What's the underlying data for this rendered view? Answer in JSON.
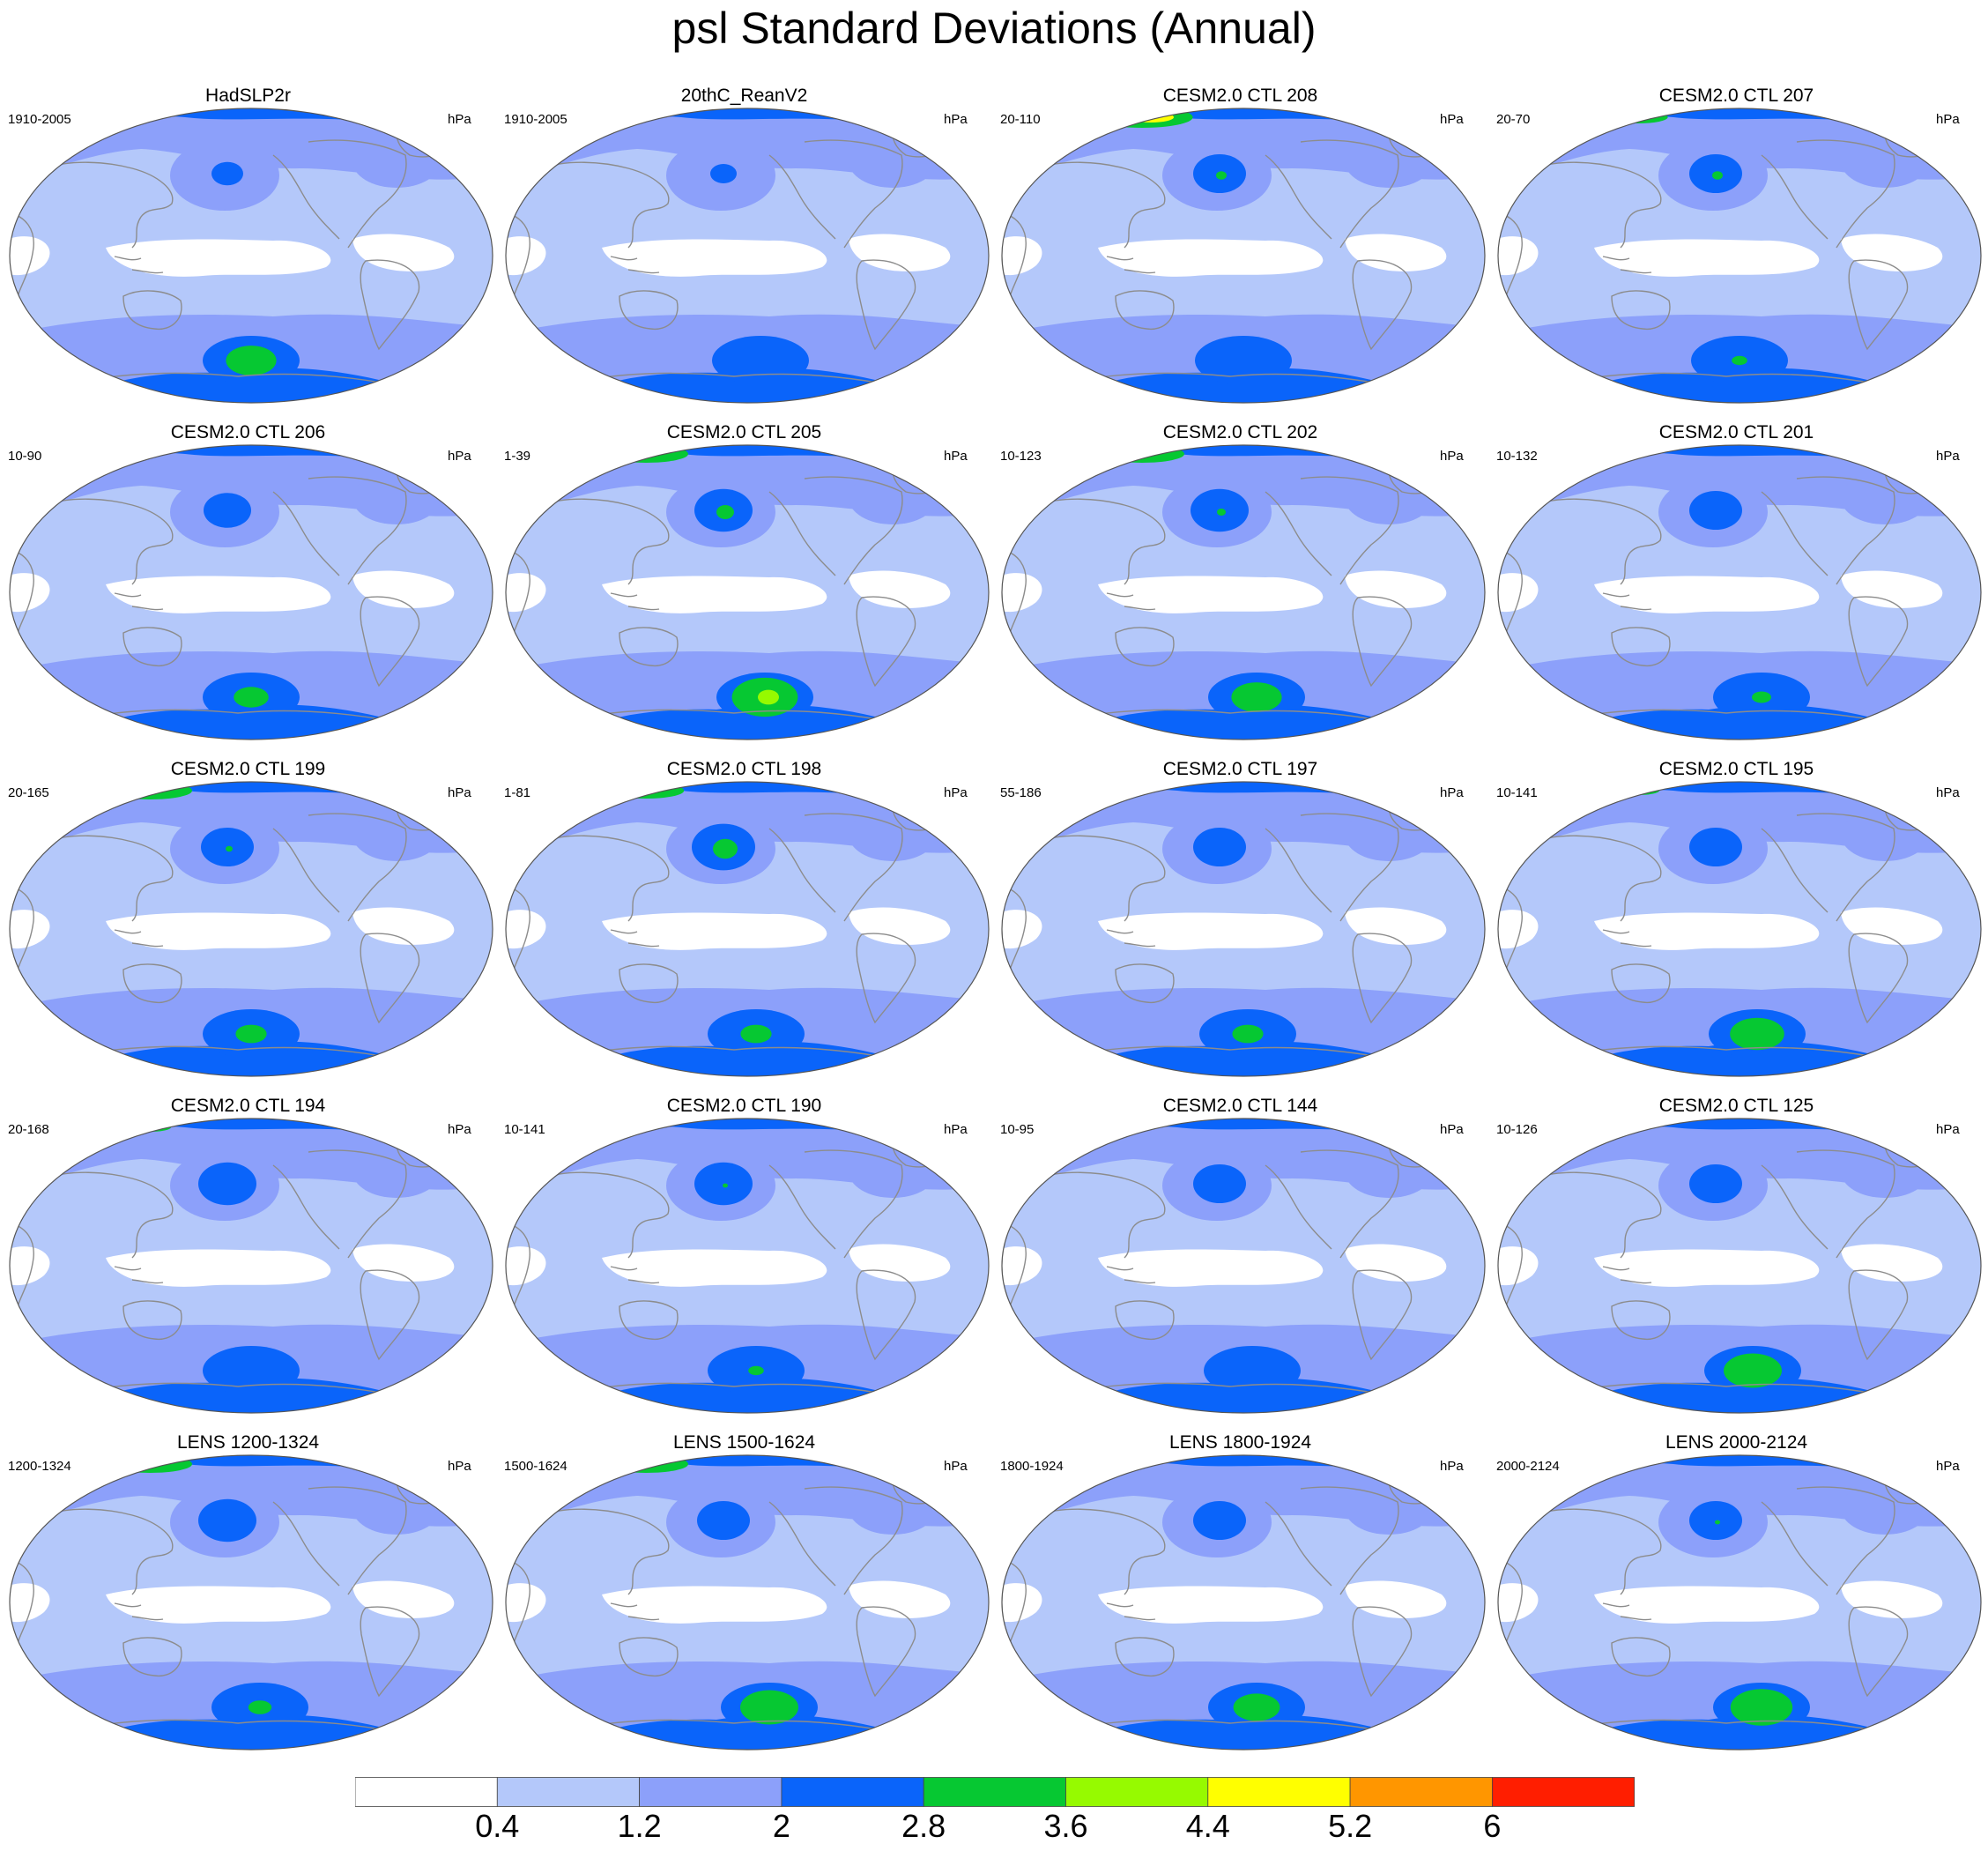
{
  "title": "psl Standard Deviations (Annual)",
  "units": "hPa",
  "colorbar": {
    "labels": [
      "0.4",
      "1.2",
      "2",
      "2.8",
      "3.6",
      "4.4",
      "5.2",
      "6"
    ],
    "colors": [
      "#ffffff",
      "#b4c8fa",
      "#8ca0fa",
      "#0a64fa",
      "#06c832",
      "#96fa00",
      "#ffff00",
      "#ff9600",
      "#ff1e00"
    ]
  },
  "palette": {
    "land_outline": "#8c8c8c",
    "frame": "#555555"
  },
  "panels": [
    {
      "title": "HadSLP2r",
      "years": "1910-2005"
    },
    {
      "title": "20thC_ReanV2",
      "years": "1910-2005"
    },
    {
      "title": "CESM2.0 CTL 208",
      "years": "20-110"
    },
    {
      "title": "CESM2.0 CTL 207",
      "years": "20-70"
    },
    {
      "title": "CESM2.0 CTL 206",
      "years": "10-90"
    },
    {
      "title": "CESM2.0 CTL 205",
      "years": "1-39"
    },
    {
      "title": "CESM2.0 CTL 202",
      "years": "10-123"
    },
    {
      "title": "CESM2.0 CTL 201",
      "years": "10-132"
    },
    {
      "title": "CESM2.0 CTL 199",
      "years": "20-165"
    },
    {
      "title": "CESM2.0 CTL 198",
      "years": "1-81"
    },
    {
      "title": "CESM2.0 CTL 197",
      "years": "55-186"
    },
    {
      "title": "CESM2.0 CTL 195",
      "years": "10-141"
    },
    {
      "title": "CESM2.0 CTL 194",
      "years": "20-168"
    },
    {
      "title": "CESM2.0 CTL 190",
      "years": "10-141"
    },
    {
      "title": "CESM2.0 CTL 144",
      "years": "10-95"
    },
    {
      "title": "CESM2.0 CTL 125",
      "years": "10-126"
    },
    {
      "title": "LENS 1200-1324",
      "years": "1200-1324"
    },
    {
      "title": "LENS 1500-1624",
      "years": "1500-1624"
    },
    {
      "title": "LENS 1800-1924",
      "years": "1800-1924"
    },
    {
      "title": "LENS 2000-2124",
      "years": "2000-2124"
    }
  ]
}
